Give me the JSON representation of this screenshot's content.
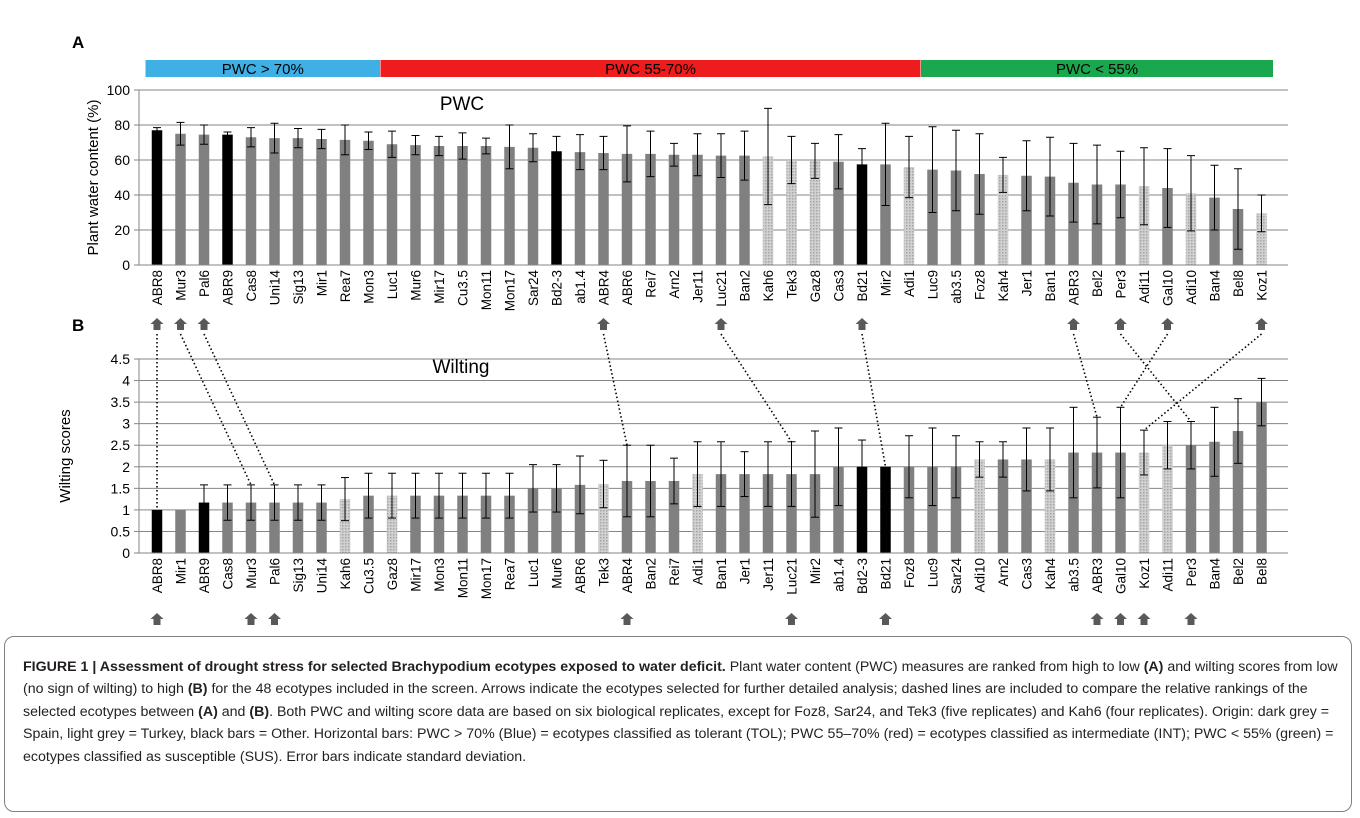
{
  "chart_data": [
    {
      "type": "bar",
      "panel_label": "A",
      "annotation": "PWC",
      "ylabel": "Plant water content (%)",
      "ylim": [
        0,
        100
      ],
      "yticks": [
        0,
        20,
        40,
        60,
        80,
        100
      ],
      "grid": true,
      "categories": [
        "ABR8",
        "Mur3",
        "Pal6",
        "ABR9",
        "Cas8",
        "Uni14",
        "Sig13",
        "Mir1",
        "Rea7",
        "Mon3",
        "Luc1",
        "Mur6",
        "Mir17",
        "Cu3.5",
        "Mon11",
        "Mon17",
        "Sar24",
        "Bd2-3",
        "ab1.4",
        "ABR4",
        "ABR6",
        "Rei7",
        "Arn2",
        "Jer11",
        "Luc21",
        "Ban2",
        "Kah6",
        "Tek3",
        "Gaz8",
        "Cas3",
        "Bd21",
        "Mir2",
        "Adi1",
        "Luc9",
        "ab3.5",
        "Foz8",
        "Kah4",
        "Jer1",
        "Ban1",
        "ABR3",
        "Bel2",
        "Per3",
        "Adi11",
        "Gal10",
        "Adi10",
        "Ban4",
        "Bel8",
        "Koz1"
      ],
      "values": [
        77,
        75,
        74.5,
        74.5,
        73,
        72.5,
        72.5,
        72,
        71.5,
        71,
        69,
        68.5,
        68,
        68,
        68,
        67.5,
        67,
        65,
        64.5,
        64,
        63.5,
        63.5,
        63,
        63,
        62.5,
        62.5,
        62,
        60,
        59.5,
        59,
        57.5,
        57.5,
        56,
        54.5,
        54,
        52,
        51.5,
        51,
        50.5,
        47,
        46,
        46,
        45,
        44,
        41,
        38.5,
        32,
        29.5
      ],
      "error_upper": [
        78.5,
        81.5,
        80,
        76,
        78.5,
        81,
        78,
        77.5,
        80,
        76,
        76.5,
        74,
        73.5,
        75.5,
        72.5,
        80,
        75,
        73.5,
        74.5,
        73.5,
        79.5,
        76.5,
        69.5,
        75,
        75,
        76.5,
        89.5,
        73.5,
        69.5,
        74.5,
        66.5,
        81,
        73.5,
        79,
        77,
        75,
        61.5,
        71,
        73,
        69.5,
        68.5,
        65,
        67,
        66.5,
        62.5,
        57,
        55,
        40
      ],
      "colors": [
        "black",
        "dark grey",
        "dark grey",
        "black",
        "dark grey",
        "dark grey",
        "dark grey",
        "dark grey",
        "dark grey",
        "dark grey",
        "dark grey",
        "dark grey",
        "dark grey",
        "dark grey",
        "dark grey",
        "dark grey",
        "dark grey",
        "black",
        "dark grey",
        "dark grey",
        "dark grey",
        "dark grey",
        "dark grey",
        "dark grey",
        "dark grey",
        "dark grey",
        "light grey",
        "light grey",
        "light grey",
        "dark grey",
        "black",
        "dark grey",
        "light grey",
        "dark grey",
        "dark grey",
        "dark grey",
        "light grey",
        "dark grey",
        "dark grey",
        "dark grey",
        "dark grey",
        "dark grey",
        "light grey",
        "dark grey",
        "light grey",
        "dark grey",
        "dark grey",
        "light grey"
      ],
      "selected_arrows": [
        "ABR8",
        "Mur3",
        "Pal6",
        "ABR4",
        "Luc21",
        "Bd21",
        "ABR3",
        "Per3",
        "Gal10",
        "Koz1"
      ],
      "class_bars": [
        {
          "label": "PWC > 70%",
          "color": "#3fb0e6",
          "from": "ABR8",
          "to": "Mon3"
        },
        {
          "label": "PWC  55-70%",
          "color": "#ee1c1c",
          "from": "Luc1",
          "to": "Adi1"
        },
        {
          "label": "PWC < 55%",
          "color": "#1aa84e",
          "from": "Luc9",
          "to": "Koz1"
        }
      ]
    },
    {
      "type": "bar",
      "panel_label": "B",
      "annotation": "Wilting",
      "ylabel": "Wilting scores",
      "ylim": [
        0,
        4.5
      ],
      "yticks": [
        "0",
        "0.5",
        "1",
        "1.5",
        "2",
        "2.5",
        "3",
        "3.5",
        "4",
        "4.5"
      ],
      "grid": true,
      "categories": [
        "ABR8",
        "Mir1",
        "ABR9",
        "Cas8",
        "Mur3",
        "Pal6",
        "Sig13",
        "Uni14",
        "Kah6",
        "Cu3.5",
        "Gaz8",
        "Mir17",
        "Mon3",
        "Mon11",
        "Mon17",
        "Rea7",
        "Luc1",
        "Mur6",
        "ABR6",
        "Tek3",
        "ABR4",
        "Ban2",
        "Rei7",
        "Adi1",
        "Ban1",
        "Jer1",
        "Jer11",
        "Luc21",
        "Mir2",
        "ab1.4",
        "Bd2-3",
        "Bd21",
        "Foz8",
        "Luc9",
        "Sar24",
        "Adi10",
        "Arn2",
        "Cas3",
        "Kah4",
        "ab3.5",
        "ABR3",
        "Gal10",
        "Koz1",
        "Adi11",
        "Per3",
        "Ban4",
        "Bel2",
        "Bel8"
      ],
      "values": [
        1,
        1,
        1.17,
        1.17,
        1.17,
        1.17,
        1.17,
        1.17,
        1.25,
        1.33,
        1.33,
        1.33,
        1.33,
        1.33,
        1.33,
        1.33,
        1.5,
        1.5,
        1.58,
        1.6,
        1.67,
        1.67,
        1.67,
        1.83,
        1.83,
        1.83,
        1.83,
        1.83,
        1.83,
        2,
        2,
        2,
        2,
        2,
        2,
        2.17,
        2.17,
        2.17,
        2.17,
        2.33,
        2.33,
        2.33,
        2.33,
        2.5,
        2.5,
        2.58,
        2.83,
        3.5
      ],
      "error_upper": [
        null,
        null,
        1.58,
        1.58,
        1.58,
        1.58,
        1.58,
        1.58,
        1.75,
        1.85,
        1.85,
        1.85,
        1.85,
        1.85,
        1.85,
        1.85,
        2.05,
        2.05,
        2.25,
        2.15,
        2.5,
        2.5,
        2.2,
        2.58,
        2.58,
        2.35,
        2.58,
        2.58,
        2.83,
        2.9,
        2.62,
        null,
        2.72,
        2.9,
        2.72,
        2.58,
        2.58,
        2.9,
        2.9,
        3.38,
        3.15,
        3.38,
        2.85,
        3.05,
        3.05,
        3.38,
        3.58,
        4.05
      ],
      "colors": [
        "black",
        "dark grey",
        "black",
        "dark grey",
        "dark grey",
        "dark grey",
        "dark grey",
        "dark grey",
        "light grey",
        "dark grey",
        "light grey",
        "dark grey",
        "dark grey",
        "dark grey",
        "dark grey",
        "dark grey",
        "dark grey",
        "dark grey",
        "dark grey",
        "light grey",
        "dark grey",
        "dark grey",
        "dark grey",
        "light grey",
        "dark grey",
        "dark grey",
        "dark grey",
        "dark grey",
        "dark grey",
        "dark grey",
        "black",
        "black",
        "dark grey",
        "dark grey",
        "dark grey",
        "light grey",
        "dark grey",
        "dark grey",
        "light grey",
        "dark grey",
        "dark grey",
        "dark grey",
        "light grey",
        "light grey",
        "dark grey",
        "dark grey",
        "dark grey",
        "dark grey"
      ],
      "selected_arrows": [
        "ABR8",
        "Mur3",
        "Pal6",
        "ABR4",
        "Luc21",
        "Bd21",
        "ABR3",
        "Gal10",
        "Koz1",
        "Per3"
      ]
    }
  ],
  "caption": {
    "figure_label": "FIGURE 1 | Assessment of drought stress for selected Brachypodium ecotypes exposed to water deficit.",
    "part1": " Plant water content (PWC) measures are ranked from high to low ",
    "ref_a1": "(A)",
    "part2": " and wilting scores from low (no sign of wilting) to high ",
    "ref_b1": "(B)",
    "part3": " for the 48 ecotypes included in the screen. Arrows indicate the ecotypes selected for further detailed analysis; dashed lines are included to compare the relative rankings of the selected ecotypes between ",
    "ref_a2": "(A)",
    "part4": " and ",
    "ref_b2": "(B)",
    "part5": ". Both PWC and wilting score data are based on six biological replicates, except for Foz8, Sar24, and Tek3 (five replicates) and Kah6 (four replicates). Origin: dark grey = Spain, light grey = Turkey, black bars = Other. Horizontal bars: PWC > 70% (Blue) = ecotypes classified as tolerant (TOL); PWC 55–70% (red) = ecotypes classified as intermediate (INT); PWC < 55% (green) = ecotypes classified as susceptible (SUS). Error bars indicate standard deviation."
  }
}
